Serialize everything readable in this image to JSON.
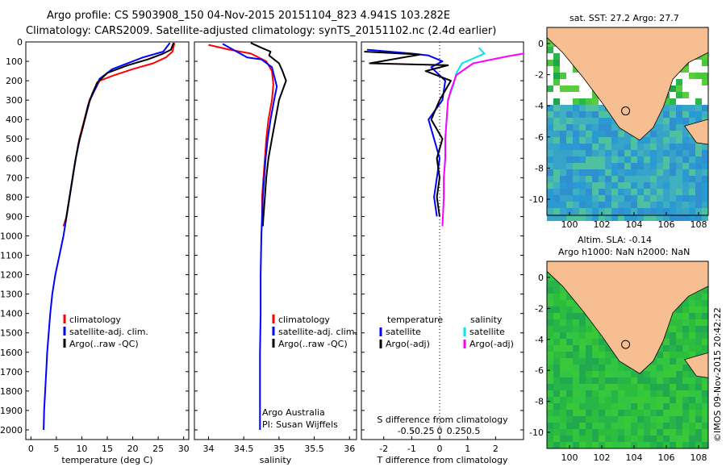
{
  "header": {
    "line1": "Argo profile: CS 5903908_150 04-Nov-2015 20151104_823 4.941S 103.282E",
    "line2": "Climatology: CARS2009. Satellite-adjusted climatology: synTS_20151102.nc (2.4d earlier)"
  },
  "colors": {
    "climatology": "#ff0000",
    "satellite": "#0000ff",
    "argo": "#000000",
    "sal_satellite": "#00e5ee",
    "sal_argo": "#ff00ff",
    "land": "#f7bf91",
    "ocean_cold": "#3aa0c8",
    "ocean_warm": "#27c437"
  },
  "chart_data": [
    {
      "type": "line",
      "id": "temperature",
      "xlabel": "temperature (deg C)",
      "ylabel": "",
      "xlim": [
        -1,
        31
      ],
      "ylim": [
        2050,
        0
      ],
      "xticks": [
        0,
        5,
        10,
        15,
        20,
        25,
        30
      ],
      "yticks": [
        0,
        100,
        200,
        300,
        400,
        500,
        600,
        700,
        800,
        900,
        1000,
        1100,
        1200,
        1300,
        1400,
        1500,
        1600,
        1700,
        1800,
        1900,
        2000
      ],
      "series": [
        {
          "name": "climatology",
          "color": "#ff0000",
          "x": [
            28.2,
            27.8,
            26.5,
            24,
            20,
            16,
            13.5,
            12.5,
            11.5,
            10.5,
            9.5,
            8.8,
            8.2,
            7.6,
            7.0,
            6.4
          ],
          "y": [
            5,
            50,
            80,
            110,
            140,
            175,
            200,
            250,
            300,
            400,
            500,
            600,
            700,
            800,
            900,
            950
          ]
        },
        {
          "name": "satellite-adj. clim.",
          "color": "#0000ff",
          "x": [
            27.3,
            26,
            22,
            16,
            13.5,
            12.5,
            11.6,
            10.6,
            9.6,
            8.8,
            8.2,
            7.6,
            7.0,
            6.4,
            5.6,
            4.8,
            4.2,
            3.8,
            3.5,
            3.2,
            3.0,
            2.8,
            2.6,
            2.5
          ],
          "y": [
            5,
            50,
            80,
            140,
            190,
            250,
            300,
            400,
            500,
            600,
            700,
            800,
            900,
            1000,
            1100,
            1200,
            1300,
            1400,
            1500,
            1600,
            1700,
            1800,
            1900,
            2000
          ]
        },
        {
          "name": "Argo(..raw -QC)",
          "color": "#000000",
          "x": [
            28.0,
            27.5,
            26,
            23,
            19,
            15,
            13.0,
            12.0,
            11.2,
            10.3,
            9.3,
            8.6,
            8.0,
            7.4,
            6.8
          ],
          "y": [
            5,
            40,
            60,
            90,
            120,
            160,
            210,
            270,
            330,
            430,
            530,
            630,
            730,
            830,
            930
          ]
        }
      ],
      "legend": {
        "position": "middle-right",
        "entries": [
          "climatology",
          "satellite-adj. clim.",
          "Argo(..raw -QC)"
        ]
      }
    },
    {
      "type": "line",
      "id": "salinity",
      "xlabel": "salinity",
      "xlim": [
        33.8,
        36.1
      ],
      "ylim": [
        2050,
        0
      ],
      "xticks": [
        34,
        34.5,
        35,
        35.5,
        36
      ],
      "xticklabels": [
        "34",
        "34.5",
        "35",
        "35.5",
        "36"
      ],
      "series": [
        {
          "name": "climatology",
          "color": "#ff0000",
          "x": [
            34.0,
            34.3,
            34.6,
            34.82,
            34.9,
            34.92,
            34.9,
            34.85,
            34.82,
            34.8,
            34.78,
            34.76,
            34.76
          ],
          "y": [
            15,
            40,
            60,
            100,
            150,
            220,
            300,
            400,
            500,
            600,
            700,
            800,
            950
          ]
        },
        {
          "name": "satellite-adj. clim.",
          "color": "#0000ff",
          "x": [
            34.2,
            34.4,
            34.55,
            34.75,
            34.9,
            34.97,
            34.93,
            34.88,
            34.84,
            34.81,
            34.79,
            34.77,
            34.76,
            34.75,
            34.74,
            34.74,
            34.73,
            34.73,
            34.73,
            34.73
          ],
          "y": [
            10,
            50,
            80,
            90,
            130,
            230,
            300,
            400,
            500,
            600,
            700,
            800,
            900,
            1000,
            1200,
            1400,
            1600,
            1800,
            1900,
            2000
          ]
        },
        {
          "name": "Argo(..raw -QC)",
          "color": "#000000",
          "x": [
            34.6,
            34.75,
            34.88,
            34.86,
            35.0,
            35.05,
            35.1,
            35.0,
            34.95,
            34.9,
            34.85,
            34.82,
            34.8,
            34.78,
            34.77
          ],
          "y": [
            5,
            30,
            50,
            70,
            110,
            150,
            200,
            300,
            400,
            500,
            600,
            700,
            800,
            900,
            950
          ]
        }
      ],
      "legend": {
        "position": "middle-right",
        "entries": [
          "climatology",
          "satellite-adj. clim.",
          "Argo(..raw -QC)"
        ]
      },
      "annotations": [
        "Argo Australia",
        "PI: Susan Wijffels"
      ]
    },
    {
      "type": "line",
      "id": "difference",
      "xlabel": "T difference from climatology",
      "xlabel_top": "S difference from climatology",
      "xlim": [
        -2.8,
        3.0
      ],
      "ylim": [
        2050,
        0
      ],
      "xticks": [
        -2,
        -1,
        0,
        1,
        2
      ],
      "xticklabels": [
        "-2",
        "-1",
        "0",
        "1",
        "2"
      ],
      "top_axis_ticks": [
        "-0.5",
        "-0.25",
        "0",
        "0.25",
        "0.5"
      ],
      "series": [
        {
          "name": "temperature satellite",
          "color": "#0000ff",
          "x": [
            -2.6,
            -1.0,
            -0.4,
            0.1,
            -0.3,
            0.2,
            0.1,
            -0.4,
            -0.2,
            0.0,
            -0.1,
            -0.2,
            -0.1
          ],
          "y": [
            40,
            60,
            70,
            100,
            130,
            200,
            300,
            400,
            500,
            600,
            700,
            800,
            900
          ]
        },
        {
          "name": "temperature Argo(-adj)",
          "color": "#000000",
          "x": [
            -2.7,
            -0.7,
            -2.5,
            0.3,
            -0.5,
            0.4,
            0.0,
            -0.3,
            0.1,
            -0.1,
            0.0,
            -0.1,
            0.0
          ],
          "y": [
            50,
            65,
            110,
            120,
            150,
            200,
            300,
            400,
            500,
            600,
            700,
            800,
            900
          ]
        },
        {
          "name": "salinity satellite",
          "color": "#00e5ee",
          "x": [
            1.4,
            1.6,
            0.8,
            0.6,
            0.5,
            0.3,
            0.25,
            0.2,
            0.2,
            0.15,
            0.15
          ],
          "y": [
            30,
            60,
            110,
            160,
            220,
            300,
            400,
            500,
            600,
            700,
            800
          ]
        },
        {
          "name": "salinity Argo(-adj)",
          "color": "#ff00ff",
          "x": [
            3.0,
            2.4,
            1.2,
            0.6,
            0.4,
            0.3,
            0.25,
            0.2,
            0.2,
            0.15,
            0.15,
            0.1
          ],
          "y": [
            60,
            75,
            110,
            170,
            250,
            300,
            400,
            500,
            600,
            700,
            800,
            950
          ]
        }
      ],
      "legend_labels": {
        "temperature": "temperature",
        "salinity": "salinity",
        "satellite": "satellite",
        "argo_adj": "Argo(-adj)"
      }
    }
  ],
  "maps": [
    {
      "id": "sst",
      "title": "sat. SST: 27.2 Argo: 27.7",
      "xticks": [
        "100",
        "102",
        "104",
        "106",
        "108"
      ],
      "yticks": [
        "0",
        "-2",
        "-4",
        "-6",
        "-8",
        "-10"
      ]
    },
    {
      "id": "sla",
      "title_line1": "Altim. SLA: -0.14",
      "title_line2": "Argo h1000: NaN h2000: NaN",
      "xticks": [
        "100",
        "102",
        "104",
        "106",
        "108"
      ],
      "yticks": [
        "0",
        "-2",
        "-4",
        "-6",
        "-8",
        "-10"
      ]
    }
  ],
  "footer": {
    "credit": "©IMOS 09-Nov-2015 20:42:22"
  }
}
